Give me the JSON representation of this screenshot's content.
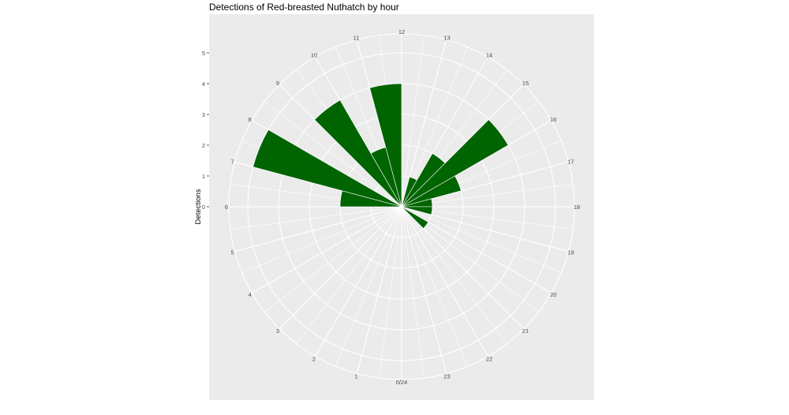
{
  "chart_data": {
    "type": "bar",
    "coord": "polar",
    "title": "Detections of Red-breasted Nuthatch by hour",
    "xlabel": "",
    "ylabel": "Detections",
    "x_tick_labels": [
      "0/24",
      "1",
      "2",
      "3",
      "4",
      "5",
      "6",
      "7",
      "8",
      "9",
      "10",
      "11",
      "12",
      "13",
      "14",
      "15",
      "16",
      "17",
      "18",
      "19",
      "20",
      "21",
      "22",
      "23"
    ],
    "y_ticks": [
      0,
      1,
      2,
      3,
      4,
      5
    ],
    "ylim": [
      0,
      5.6
    ],
    "grid": true,
    "bar_color": "#006400",
    "panel_color": "#EBEBEB",
    "hours": [
      6,
      7,
      9,
      10,
      11,
      13,
      14,
      15,
      16,
      17,
      18,
      20
    ],
    "values": [
      2,
      5,
      4,
      2,
      4,
      1,
      2,
      4,
      2,
      1,
      1,
      1
    ]
  }
}
